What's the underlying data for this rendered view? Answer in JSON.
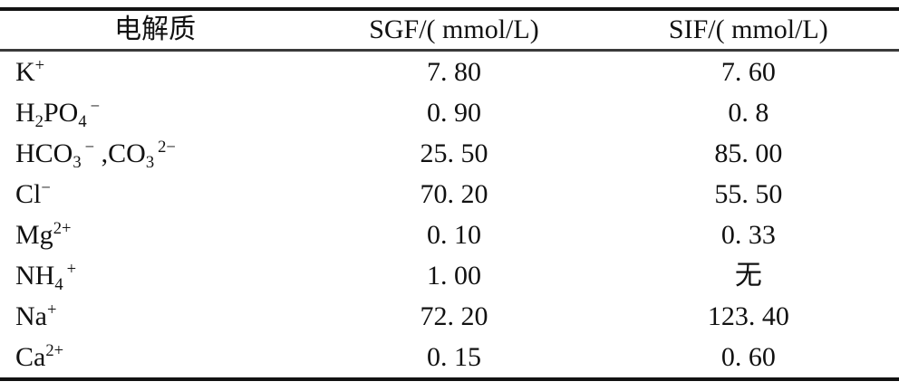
{
  "table": {
    "columns": [
      {
        "label": "电解质"
      },
      {
        "label": "SGF/( mmol/L)"
      },
      {
        "label": "SIF/( mmol/L)"
      }
    ],
    "rows": [
      {
        "ion": [
          {
            "t": "K"
          },
          {
            "sup": "+"
          }
        ],
        "sgf": "7. 80",
        "sif": "7. 60"
      },
      {
        "ion": [
          {
            "t": "H"
          },
          {
            "sub": "2"
          },
          {
            "t": "PO"
          },
          {
            "sub": "4"
          },
          {
            "sup": "−"
          }
        ],
        "sgf": "0. 90",
        "sif": "0. 8"
      },
      {
        "ion": [
          {
            "t": "HCO"
          },
          {
            "sub": "3"
          },
          {
            "sup": "−"
          },
          {
            "t": " ,CO"
          },
          {
            "sub": "3"
          },
          {
            "sup": "2−"
          }
        ],
        "sgf": "25. 50",
        "sif": "85. 00"
      },
      {
        "ion": [
          {
            "t": "Cl"
          },
          {
            "sup": "−"
          }
        ],
        "sgf": "70. 20",
        "sif": "55. 50"
      },
      {
        "ion": [
          {
            "t": "Mg"
          },
          {
            "sup": "2+"
          }
        ],
        "sgf": "0. 10",
        "sif": "0. 33"
      },
      {
        "ion": [
          {
            "t": "NH"
          },
          {
            "sub": "4"
          },
          {
            "sup": "+"
          }
        ],
        "sgf": "1. 00",
        "sif": "无"
      },
      {
        "ion": [
          {
            "t": "Na"
          },
          {
            "sup": "+"
          }
        ],
        "sgf": "72. 20",
        "sif": "123. 40"
      },
      {
        "ion": [
          {
            "t": "Ca"
          },
          {
            "sup": "2+"
          }
        ],
        "sgf": "0. 15",
        "sif": "0. 60"
      }
    ]
  }
}
